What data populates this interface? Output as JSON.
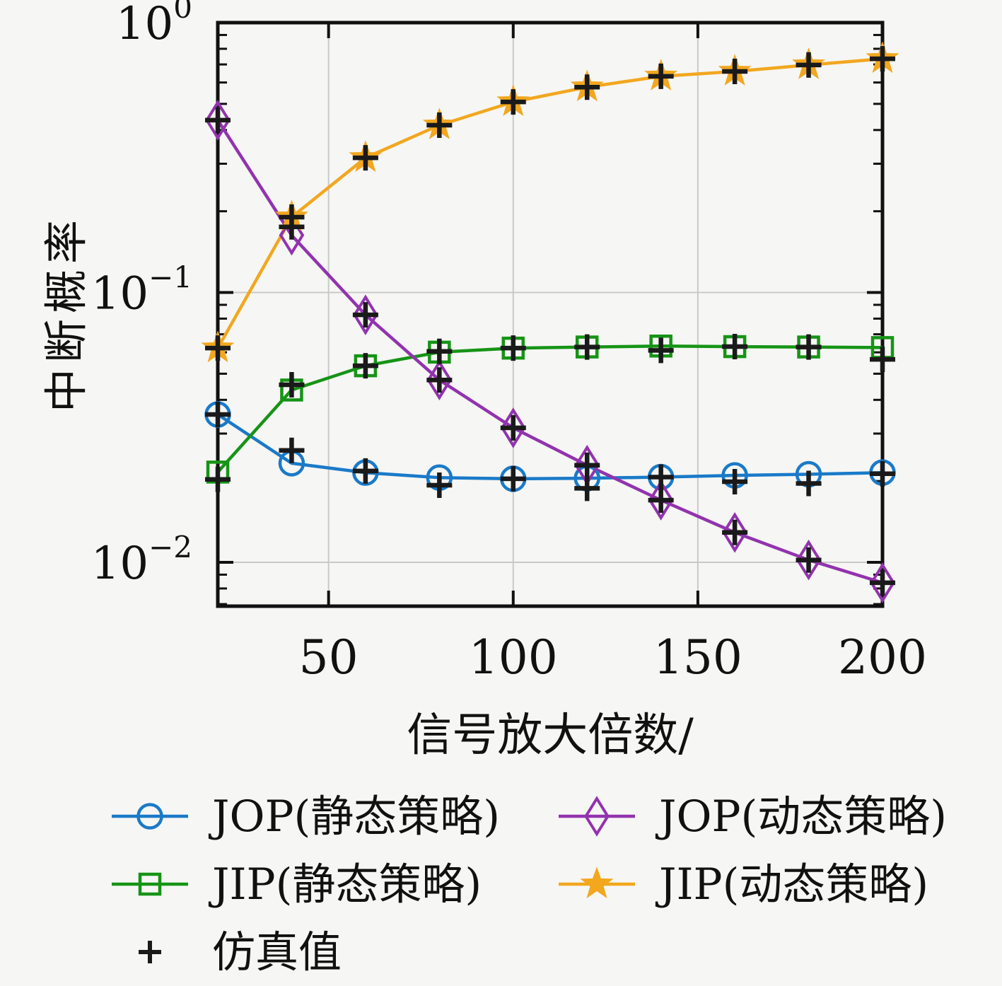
{
  "chart_data": {
    "type": "line",
    "x": [
      20,
      40,
      60,
      80,
      100,
      120,
      140,
      160,
      180,
      200
    ],
    "xlabel": "信号放大倍数/",
    "ylabel": "中断概率",
    "xlim": [
      20,
      200
    ],
    "ylim": [
      0.00687,
      1.0
    ],
    "xticks": [
      50,
      100,
      150,
      200
    ],
    "yticks": [
      {
        "base": "10",
        "exp": "0",
        "value": 1.0
      },
      {
        "base": "10",
        "exp": "−1",
        "value": 0.1
      },
      {
        "base": "10",
        "exp": "−2",
        "value": 0.01
      }
    ],
    "grid": true,
    "legend_position": "below",
    "series": [
      {
        "name": "JOP(静态策略)",
        "marker": "circle",
        "color": "#1a7ac8",
        "values": [
          0.0353,
          0.0233,
          0.0215,
          0.0206,
          0.0204,
          0.0205,
          0.0207,
          0.021,
          0.0212,
          0.0215
        ],
        "sim_values": [
          0.0353,
          0.026,
          0.0218,
          0.0193,
          0.0204,
          0.0188,
          0.0207,
          0.0199,
          0.0196,
          0.0213
        ]
      },
      {
        "name": "JIP(静态策略)",
        "marker": "square",
        "color": "#169416",
        "values": [
          0.0216,
          0.0435,
          0.0535,
          0.0601,
          0.0622,
          0.0628,
          0.0633,
          0.063,
          0.0628,
          0.0625
        ],
        "sim_values": [
          0.0203,
          0.0455,
          0.0535,
          0.0605,
          0.0622,
          0.0628,
          0.061,
          0.063,
          0.0628,
          0.0565
        ]
      },
      {
        "name": "JOP(动态策略)",
        "marker": "diamond",
        "color": "#9233ae",
        "values": [
          0.435,
          0.163,
          0.0826,
          0.0474,
          0.0315,
          0.0229,
          0.017,
          0.0129,
          0.0102,
          0.0084
        ],
        "sim_values": [
          0.435,
          0.175,
          0.0826,
          0.0474,
          0.0315,
          0.0229,
          0.017,
          0.0129,
          0.0102,
          0.0084
        ]
      },
      {
        "name": "JIP(动态策略)",
        "marker": "star",
        "color": "#f2a71f",
        "values": [
          0.0622,
          0.1902,
          0.3155,
          0.4169,
          0.5082,
          0.5766,
          0.6324,
          0.6592,
          0.6966,
          0.7345
        ],
        "sim_values": [
          0.0622,
          0.1902,
          0.3155,
          0.4169,
          0.5082,
          0.5766,
          0.6324,
          0.6592,
          0.6966,
          0.7345
        ]
      }
    ],
    "sim_series": {
      "name": "仿真值",
      "marker": "plus",
      "color": "#1a1a1a"
    }
  },
  "style_colors": {
    "background": "#f6f6f4",
    "grid": "#c9c9c9",
    "axis": "#111111"
  }
}
